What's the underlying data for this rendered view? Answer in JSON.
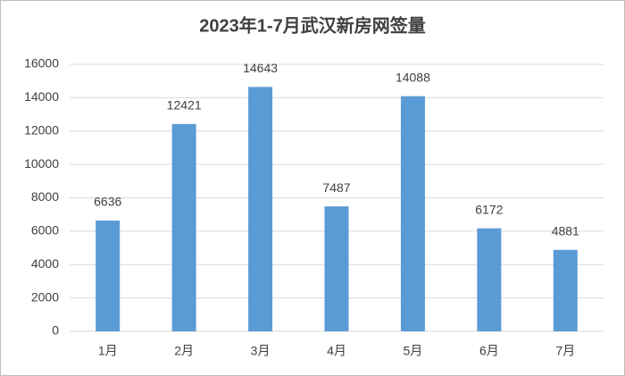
{
  "chart_data": {
    "type": "bar",
    "title": "2023年1-7月武汉新房网签量",
    "categories": [
      "1月",
      "2月",
      "3月",
      "4月",
      "5月",
      "6月",
      "7月"
    ],
    "values": [
      6636,
      12421,
      14643,
      7487,
      14088,
      6172,
      4881
    ],
    "color": "#5b9bd5",
    "ylim": [
      0,
      16000
    ],
    "yticks": [
      0,
      2000,
      4000,
      6000,
      8000,
      10000,
      12000,
      14000,
      16000
    ],
    "grid": true
  }
}
